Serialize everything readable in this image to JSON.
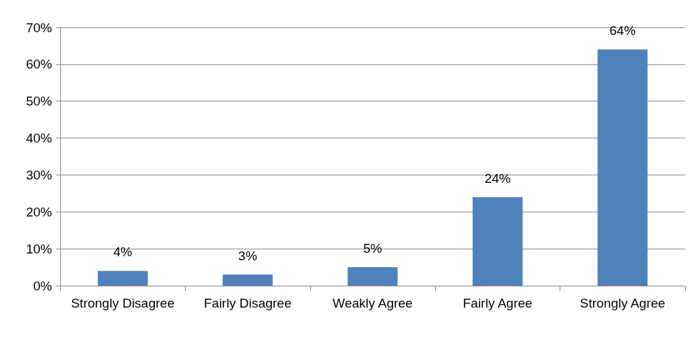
{
  "chart_data": {
    "type": "bar",
    "categories": [
      "Strongly Disagree",
      "Fairly Disagree",
      "Weakly Agree",
      "Fairly Agree",
      "Strongly Agree"
    ],
    "values": [
      4,
      3,
      5,
      24,
      64
    ],
    "value_labels": [
      "4%",
      "3%",
      "5%",
      "24%",
      "64%"
    ],
    "color": "#4f81bd",
    "ylim": [
      0,
      70
    ],
    "yticks": [
      {
        "value": 0,
        "label": "0%"
      },
      {
        "value": 10,
        "label": "10%"
      },
      {
        "value": 20,
        "label": "20%"
      },
      {
        "value": 30,
        "label": "30%"
      },
      {
        "value": 40,
        "label": "40%"
      },
      {
        "value": 50,
        "label": "50%"
      },
      {
        "value": 60,
        "label": "60%"
      },
      {
        "value": 70,
        "label": "70%"
      }
    ],
    "grid": "y"
  }
}
